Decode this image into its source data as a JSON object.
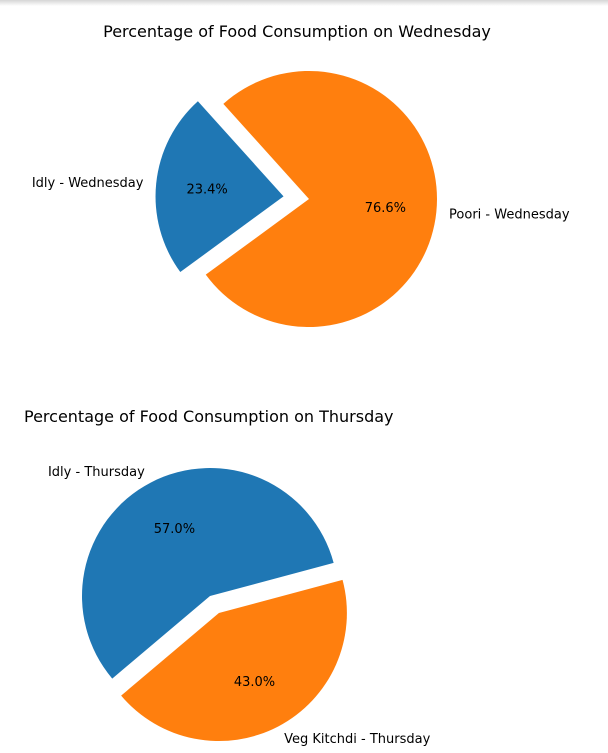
{
  "chart_data": [
    {
      "type": "pie",
      "title": "Percentage of Food Consumption on Wednesday",
      "slices": [
        {
          "label": "Idly - Wednesday",
          "value": 23.4,
          "pct_label": "23.4%",
          "color": "#1f77b4",
          "exploded": true
        },
        {
          "label": "Poori - Wednesday",
          "value": 76.6,
          "pct_label": "76.6%",
          "color": "#ff7f0e",
          "exploded": false
        }
      ]
    },
    {
      "type": "pie",
      "title": "Percentage of Food Consumption on Thursday",
      "slices": [
        {
          "label": "Idly - Thursday",
          "value": 57.0,
          "pct_label": "57.0%",
          "color": "#1f77b4",
          "exploded": false
        },
        {
          "label": "Veg Kitchdi - Thursday",
          "value": 43.0,
          "pct_label": "43.0%",
          "color": "#ff7f0e",
          "exploded": true
        }
      ]
    }
  ]
}
